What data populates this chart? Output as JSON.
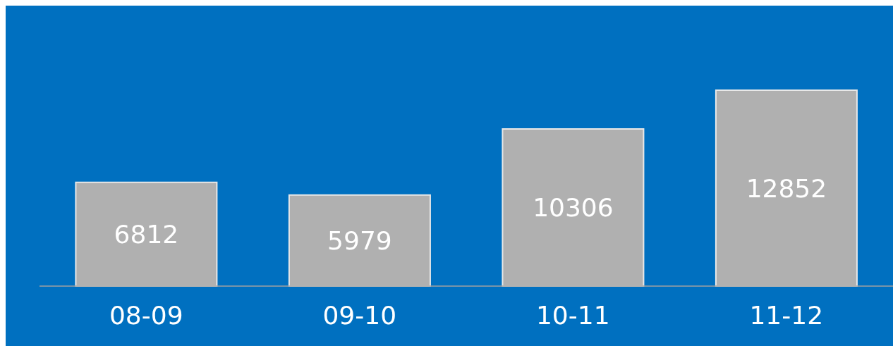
{
  "chart_data": {
    "type": "bar",
    "categories": [
      "08-09",
      "09-10",
      "10-11",
      "11-12"
    ],
    "values": [
      6812,
      5979,
      10306,
      12852
    ],
    "color": "#b0b0b0",
    "data_labels": true
  }
}
